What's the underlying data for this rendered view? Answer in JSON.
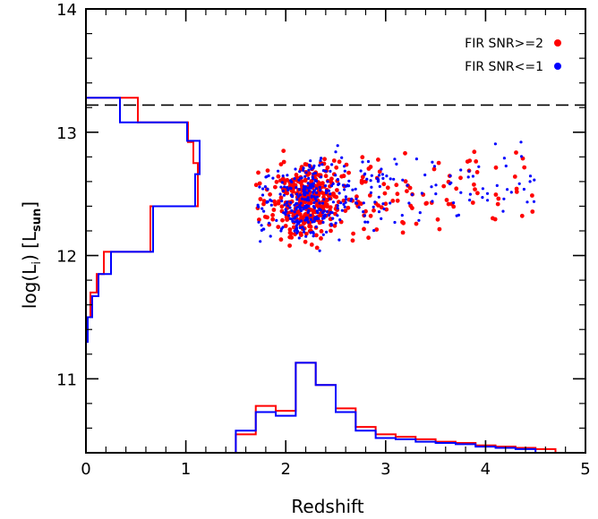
{
  "chart_data": {
    "type": "scatter",
    "xlabel": "Redshift",
    "ylabel_main": "log(L",
    "ylabel_sub": "i",
    "ylabel_tail": ")  [L",
    "ylabel_unit_sub": "sun",
    "ylabel_close": "]",
    "xlim": [
      0,
      5
    ],
    "ylim": [
      10.4,
      14.0
    ],
    "x_ticks": [
      "0",
      "1",
      "2",
      "3",
      "4",
      "5"
    ],
    "x_tick_values": [
      0,
      1,
      2,
      3,
      4,
      5
    ],
    "y_ticks": [
      "11",
      "12",
      "13",
      "14"
    ],
    "y_tick_values": [
      11,
      12,
      13,
      14
    ],
    "threshold_y": 13.22,
    "legend": {
      "position": "top-right",
      "entries": [
        {
          "label": "FIR SNR>=2",
          "color": "#ff0000"
        },
        {
          "label": "FIR SNR<=1",
          "color": "#0000ff"
        }
      ]
    },
    "series": [
      {
        "name": "FIR SNR>=2",
        "color": "#ff0000",
        "hist_redshift": {
          "edges": [
            1.5,
            1.7,
            1.9,
            2.1,
            2.3,
            2.5,
            2.7,
            2.9,
            3.1,
            3.3,
            3.5,
            3.7,
            3.9,
            4.1,
            4.3,
            4.5,
            4.7
          ],
          "levels": [
            10.55,
            10.78,
            10.74,
            11.13,
            10.95,
            10.76,
            10.61,
            10.55,
            10.53,
            10.51,
            10.49,
            10.48,
            10.46,
            10.45,
            10.44,
            10.43
          ]
        },
        "hist_luminosity": {
          "edges": [
            11.3,
            11.5,
            11.7,
            11.85,
            12.03,
            12.4,
            12.75,
            12.92,
            13.08,
            13.28
          ],
          "levels": [
            0.0,
            0.05,
            0.12,
            0.2,
            0.72,
            1.25,
            1.2,
            1.14,
            0.58
          ]
        }
      },
      {
        "name": "FIR SNR<=1",
        "color": "#0000ff",
        "hist_redshift": {
          "edges": [
            1.5,
            1.7,
            1.9,
            2.1,
            2.3,
            2.5,
            2.7,
            2.9,
            3.1,
            3.3,
            3.5,
            3.7,
            3.9,
            4.1,
            4.3,
            4.5
          ],
          "levels": [
            10.58,
            10.73,
            10.7,
            11.13,
            10.95,
            10.73,
            10.58,
            10.52,
            10.51,
            10.49,
            10.48,
            10.47,
            10.45,
            10.44,
            10.43
          ]
        },
        "hist_luminosity": {
          "edges": [
            11.3,
            11.5,
            11.67,
            11.85,
            12.03,
            12.4,
            12.66,
            12.93,
            13.08,
            13.28
          ],
          "levels": [
            0.02,
            0.07,
            0.14,
            0.28,
            0.75,
            1.22,
            1.27,
            1.13,
            0.38
          ]
        }
      }
    ]
  }
}
